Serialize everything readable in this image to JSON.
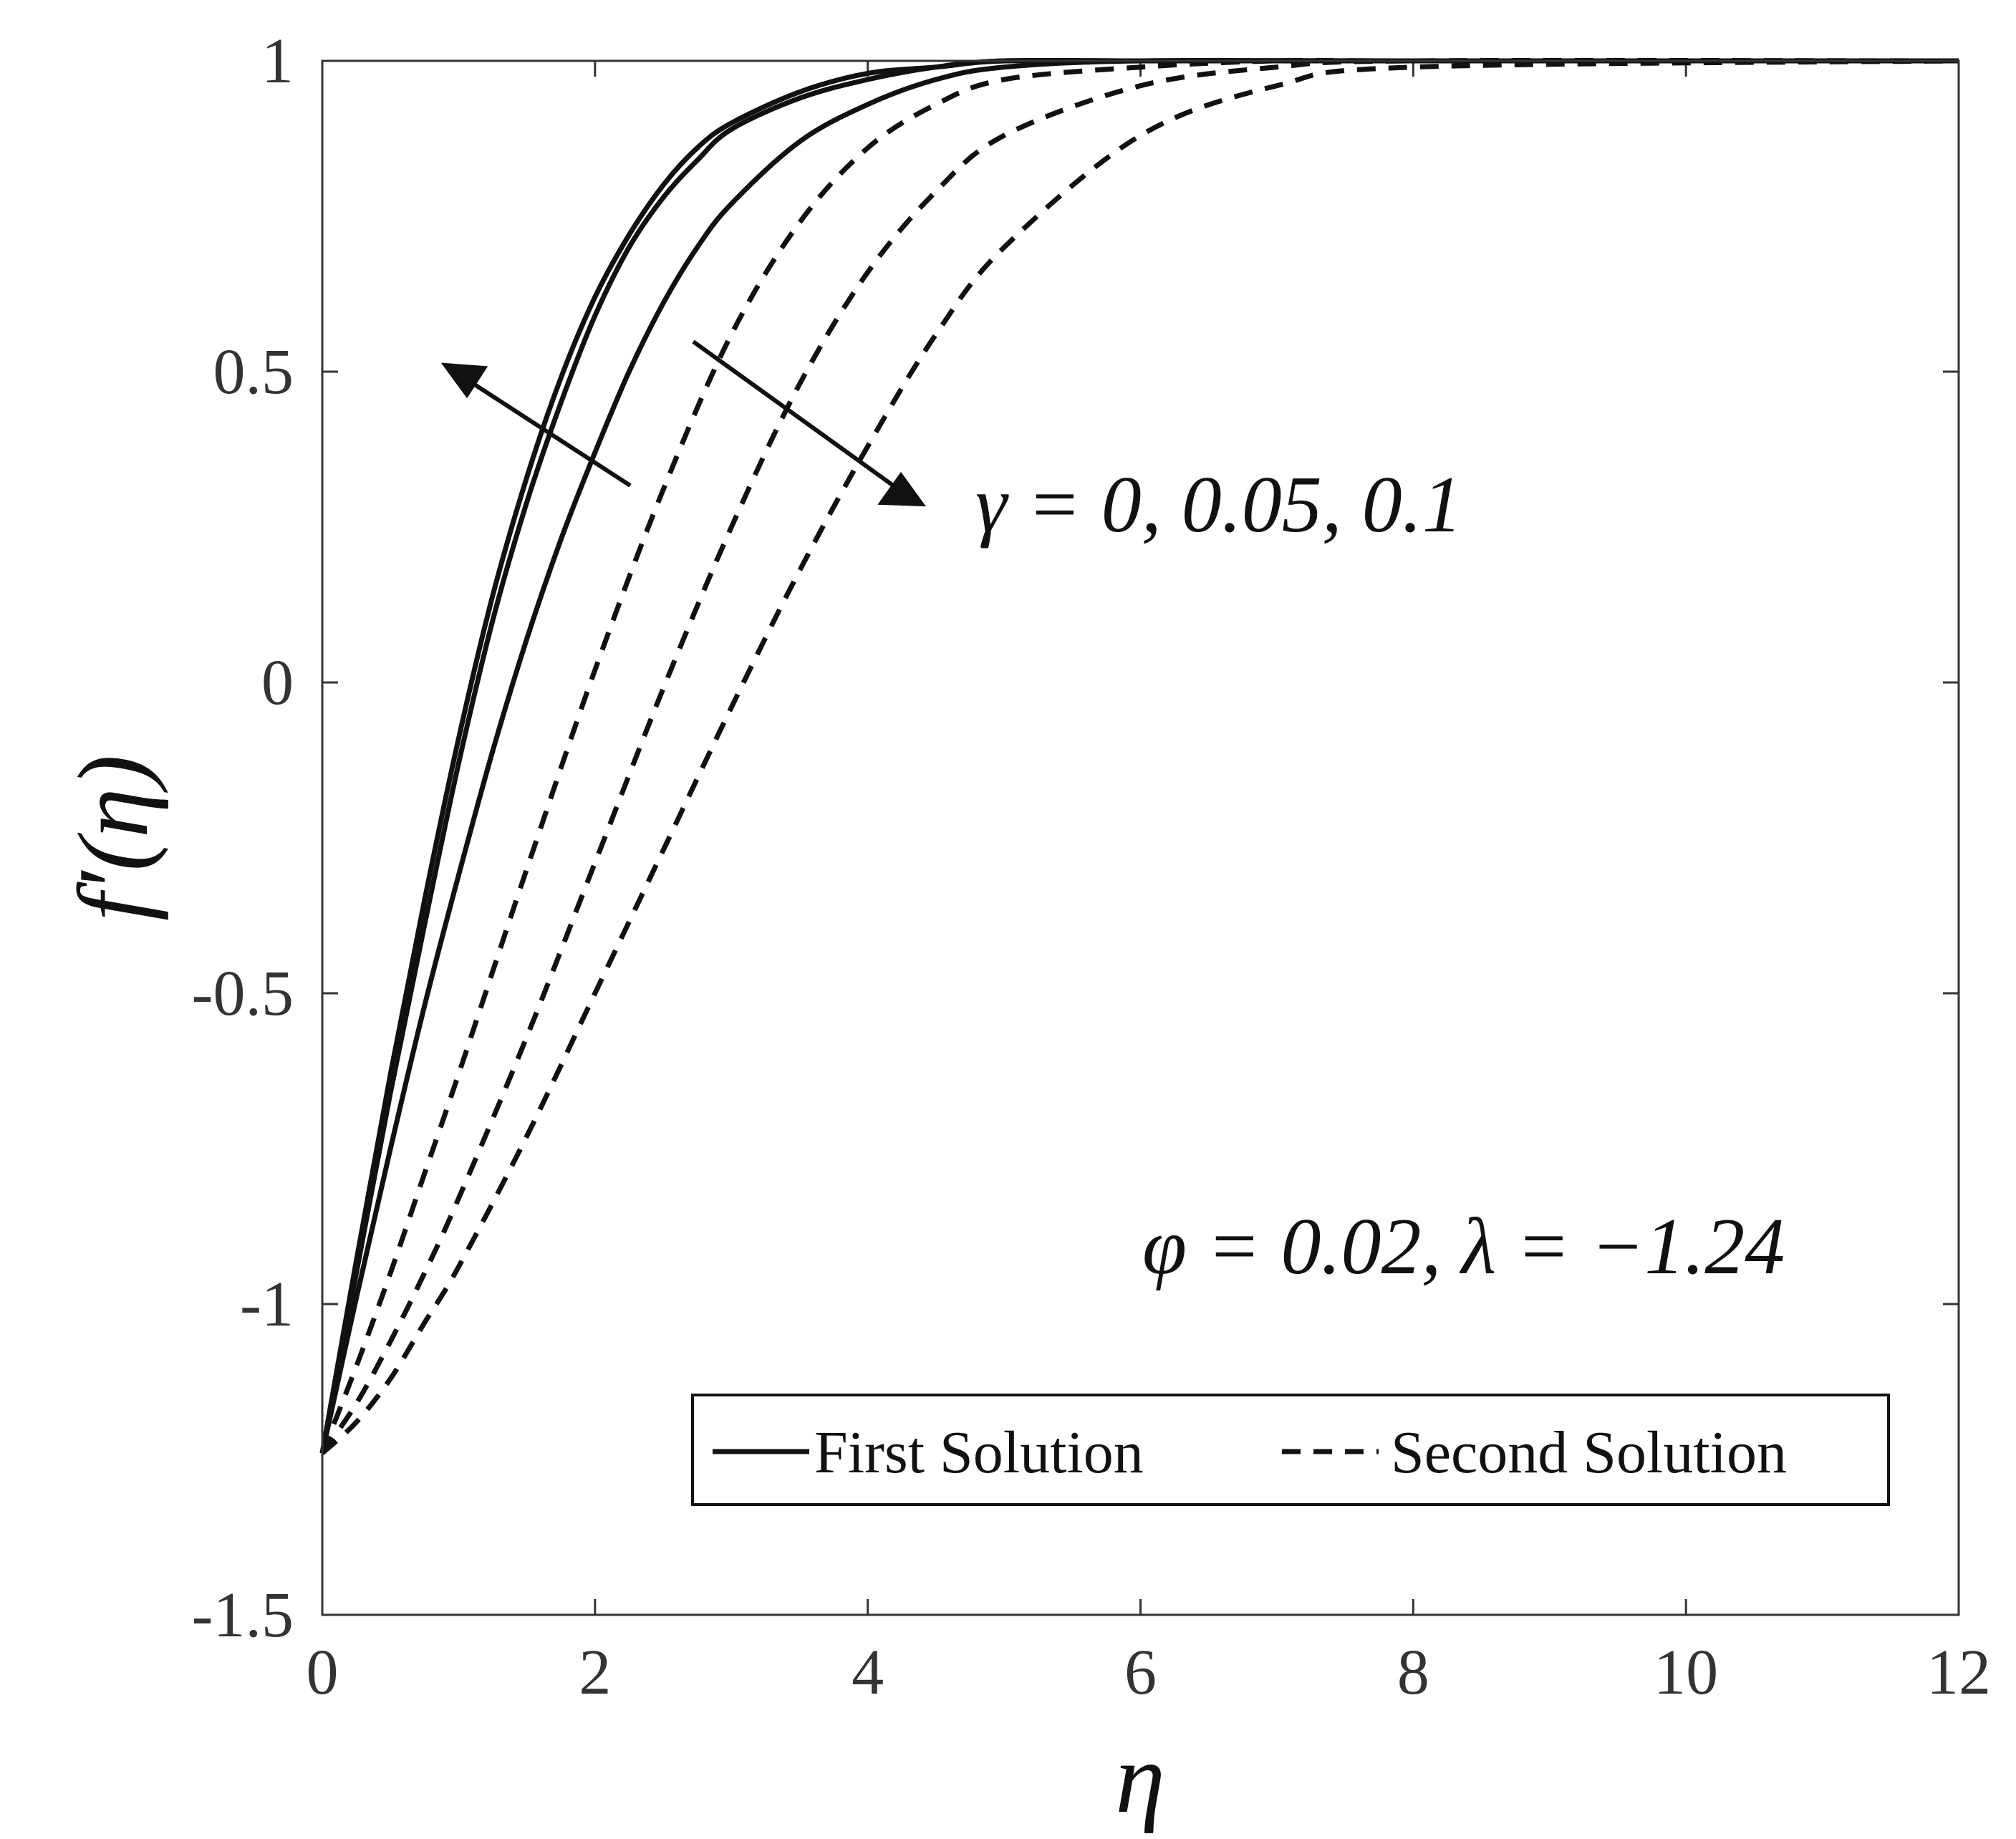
{
  "chart_data": {
    "type": "line",
    "title": "",
    "xlabel": "η",
    "ylabel": "f′(η)",
    "xlim": [
      0,
      12
    ],
    "ylim": [
      -1.5,
      1
    ],
    "xticks": [
      0,
      2,
      4,
      6,
      8,
      10,
      12
    ],
    "xtick_labels": [
      "0",
      "2",
      "4",
      "6",
      "8",
      "10",
      "12"
    ],
    "yticks": [
      -1.5,
      -1,
      -0.5,
      0,
      0.5,
      1
    ],
    "ytick_labels": [
      "-1.5",
      "-1",
      "-0.5",
      "0",
      "0.5",
      "1"
    ],
    "grid": false,
    "legend_position": "bottom-right",
    "legend": [
      {
        "label": "First Solution",
        "style": "solid"
      },
      {
        "label": "Second Solution",
        "style": "dashed"
      }
    ],
    "annotations": {
      "gamma_label": "γ = 0, 0.05, 0.1",
      "param_label": "φ = 0.02, λ = −1.24"
    },
    "series": [
      {
        "group": "First Solution",
        "style": "solid",
        "x": [
          0,
          0.25,
          0.5,
          0.75,
          1,
          1.25,
          1.5,
          1.75,
          2,
          2.25,
          2.5,
          2.75,
          3,
          3.5,
          4,
          4.5,
          5,
          6,
          8,
          12
        ],
        "y": [
          -1.24,
          -0.93,
          -0.63,
          -0.35,
          -0.09,
          0.14,
          0.33,
          0.49,
          0.62,
          0.72,
          0.8,
          0.86,
          0.9,
          0.95,
          0.98,
          0.99,
          1.0,
          1.0,
          1.0,
          1.0
        ]
      },
      {
        "group": "First Solution",
        "style": "solid",
        "x": [
          0,
          0.25,
          0.5,
          0.75,
          1,
          1.25,
          1.5,
          1.75,
          2,
          2.25,
          2.5,
          2.75,
          3,
          3.5,
          4,
          4.5,
          5,
          6,
          8,
          12
        ],
        "y": [
          -1.24,
          -0.95,
          -0.66,
          -0.39,
          -0.13,
          0.1,
          0.29,
          0.45,
          0.59,
          0.7,
          0.78,
          0.84,
          0.89,
          0.94,
          0.97,
          0.99,
          1.0,
          1.0,
          1.0,
          1.0
        ]
      },
      {
        "group": "First Solution",
        "style": "solid",
        "x": [
          0,
          0.25,
          0.5,
          0.75,
          1,
          1.25,
          1.5,
          1.75,
          2,
          2.25,
          2.5,
          2.75,
          3,
          3.5,
          4,
          4.5,
          5,
          6,
          8,
          12
        ],
        "y": [
          -1.24,
          -0.99,
          -0.75,
          -0.52,
          -0.31,
          -0.11,
          0.07,
          0.23,
          0.37,
          0.5,
          0.61,
          0.7,
          0.77,
          0.87,
          0.93,
          0.97,
          0.99,
          1.0,
          1.0,
          1.0
        ]
      },
      {
        "group": "Second Solution",
        "style": "dashed",
        "x": [
          0,
          0.25,
          0.5,
          0.75,
          1,
          1.5,
          2,
          2.5,
          3,
          3.5,
          4,
          4.5,
          5,
          6,
          7,
          8,
          12
        ],
        "y": [
          -1.24,
          -1.1,
          -0.95,
          -0.79,
          -0.63,
          -0.3,
          0.02,
          0.31,
          0.56,
          0.74,
          0.86,
          0.93,
          0.97,
          0.99,
          1.0,
          1.0,
          1.0
        ]
      },
      {
        "group": "Second Solution",
        "style": "dashed",
        "x": [
          0,
          0.25,
          0.5,
          0.75,
          1,
          1.5,
          2,
          2.5,
          3,
          3.5,
          4,
          4.5,
          5,
          6,
          7,
          8,
          12
        ],
        "y": [
          -1.24,
          -1.16,
          -1.06,
          -0.95,
          -0.83,
          -0.57,
          -0.29,
          -0.01,
          0.25,
          0.48,
          0.66,
          0.79,
          0.88,
          0.96,
          0.99,
          1.0,
          1.0
        ]
      },
      {
        "group": "Second Solution",
        "style": "dashed",
        "x": [
          0,
          0.25,
          0.5,
          0.75,
          1,
          1.5,
          2,
          2.5,
          3,
          3.5,
          4,
          4.5,
          5,
          6,
          7,
          8,
          12
        ],
        "y": [
          -1.24,
          -1.19,
          -1.12,
          -1.03,
          -0.94,
          -0.73,
          -0.5,
          -0.27,
          -0.04,
          0.18,
          0.38,
          0.56,
          0.7,
          0.88,
          0.96,
          0.99,
          1.0
        ]
      }
    ]
  }
}
